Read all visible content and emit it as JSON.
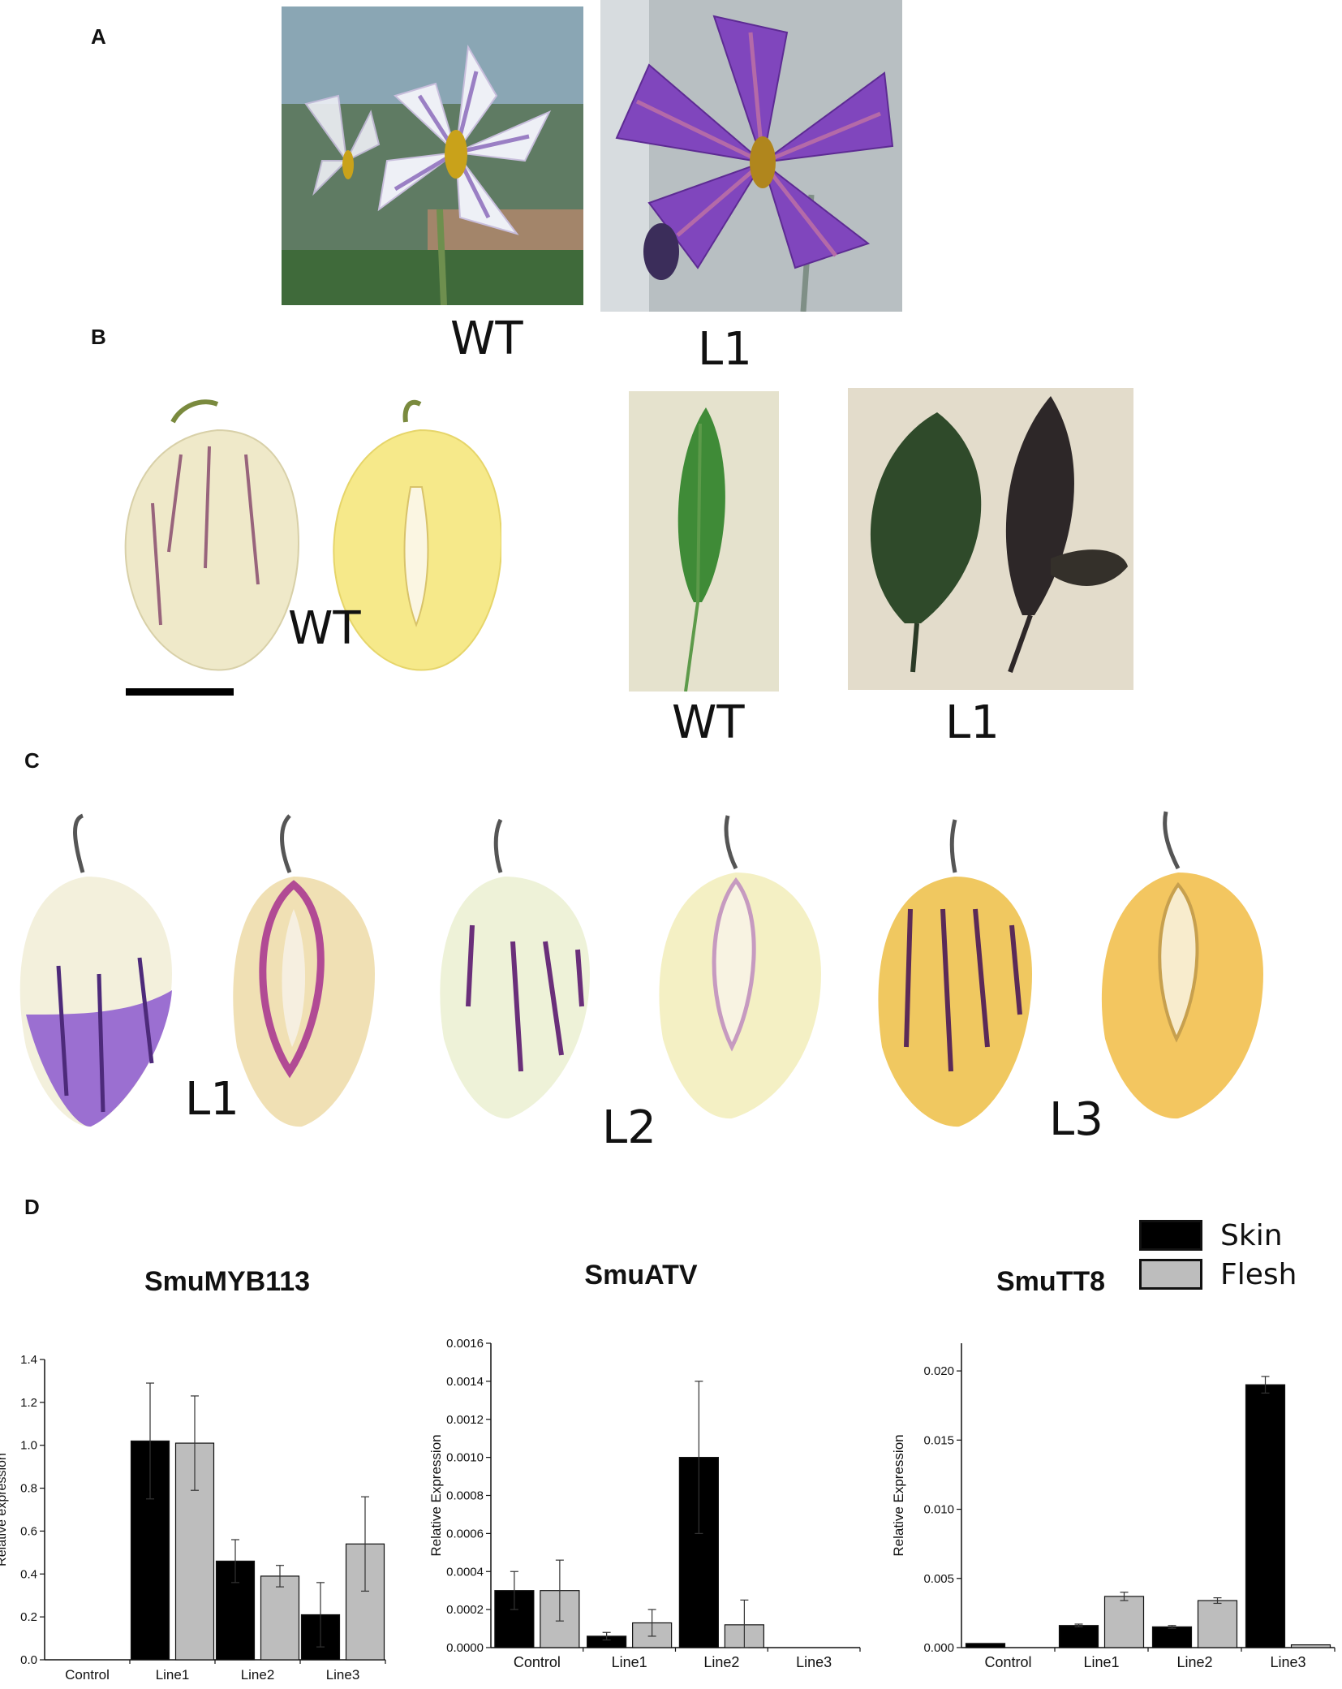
{
  "panels": {
    "A": "A",
    "B": "B",
    "C": "C",
    "D": "D"
  },
  "captions": {
    "a_wt": "WT",
    "a_l1": "L1",
    "b_fruit_wt": "WT",
    "b_leaf_wt": "WT",
    "b_leaf_l1": "L1",
    "c_l1": "L1",
    "c_l2": "L2",
    "c_l3": "L3"
  },
  "legend": {
    "skin": "Skin",
    "flesh": "Flesh",
    "skin_color": "#000000",
    "flesh_color": "#bdbdbd"
  },
  "colors": {
    "wt_flower": "#e6e9f2",
    "l1_flower": "#7b3fb8",
    "wt_fruit": "#efe8c8",
    "purple_stripe": "#6a2f7a",
    "leaf_green": "#2f7d2f",
    "leaf_dark": "#2e2a2a"
  },
  "chart_data": [
    {
      "type": "bar",
      "title": "SmuMYB113",
      "ylabel": "Relative expression",
      "xlabel": "",
      "categories": [
        "Control",
        "Line1",
        "Line2",
        "Line3"
      ],
      "ylim": [
        0,
        1.4
      ],
      "yticks": [
        "0.0",
        "0.2",
        "0.4",
        "0.6",
        "0.8",
        "1.0",
        "1.2",
        "1.4"
      ],
      "series": [
        {
          "name": "Skin",
          "values": [
            0,
            1.02,
            0.46,
            0.21
          ],
          "errors": [
            0,
            0.27,
            0.1,
            0.15
          ]
        },
        {
          "name": "Flesh",
          "values": [
            0,
            1.01,
            0.39,
            0.54
          ],
          "errors": [
            0,
            0.22,
            0.05,
            0.22
          ]
        }
      ]
    },
    {
      "type": "bar",
      "title": "SmuATV",
      "ylabel": "Relative Expression",
      "xlabel": "",
      "categories": [
        "Control",
        "Line1",
        "Line2",
        "Line3"
      ],
      "ylim": [
        0,
        0.0016
      ],
      "yticks": [
        "0.0000",
        "0.0002",
        "0.0004",
        "0.0006",
        "0.0008",
        "0.0010",
        "0.0012",
        "0.0014",
        "0.0016"
      ],
      "series": [
        {
          "name": "Skin",
          "values": [
            0.0003,
            6e-05,
            0.001,
            0
          ],
          "errors": [
            0.0001,
            2e-05,
            0.0004,
            0
          ]
        },
        {
          "name": "Flesh",
          "values": [
            0.0003,
            0.00013,
            0.00012,
            0
          ],
          "errors": [
            0.00016,
            7e-05,
            0.00013,
            0
          ]
        }
      ]
    },
    {
      "type": "bar",
      "title": "SmuTT8",
      "ylabel": "Relative Expression",
      "xlabel": "",
      "categories": [
        "Control",
        "Line1",
        "Line2",
        "Line3"
      ],
      "ylim": [
        0,
        0.022
      ],
      "yticks": [
        "0.000",
        "0.005",
        "0.010",
        "0.015",
        "0.020"
      ],
      "series": [
        {
          "name": "Skin",
          "values": [
            0.0003,
            0.0016,
            0.0015,
            0.019
          ],
          "errors": [
            0,
            0.0001,
            0.0001,
            0.0006
          ]
        },
        {
          "name": "Flesh",
          "values": [
            0,
            0.0037,
            0.0034,
            0.0002
          ],
          "errors": [
            0,
            0.0003,
            0.0002,
            0
          ]
        }
      ]
    }
  ]
}
